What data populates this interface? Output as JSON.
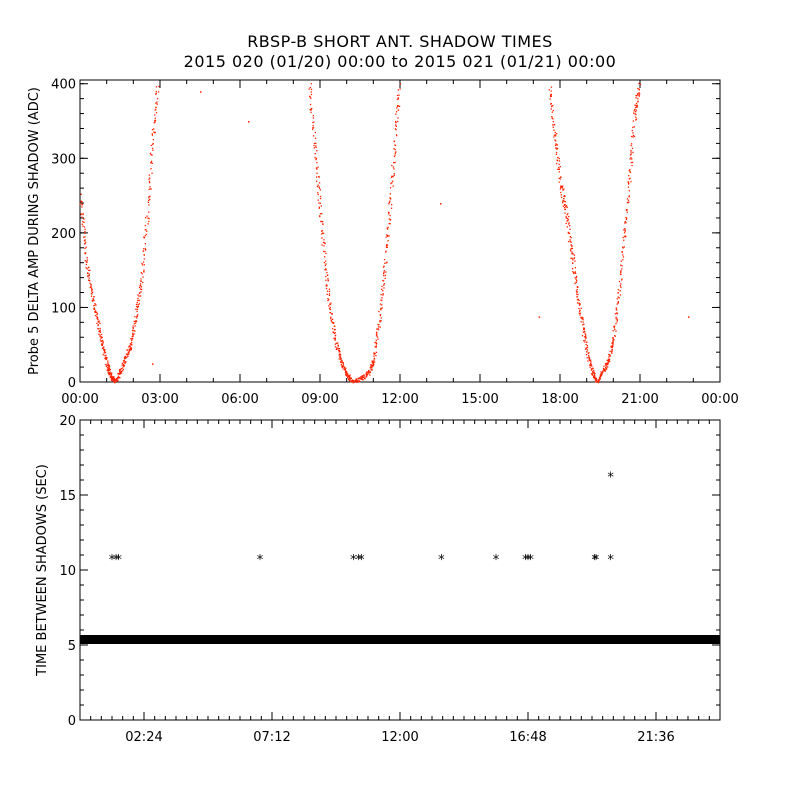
{
  "title_line1": "RBSP-B SHORT ANT. SHADOW TIMES",
  "title_line2": "2015 020 (01/20) 00:00 to 2015 021 (01/21) 00:00",
  "colors": {
    "points_top": "#ff2200",
    "points_bottom": "#000000",
    "axes": "#000000"
  },
  "chart_data": [
    {
      "type": "scatter",
      "ylabel": "Probe 5 DELTA AMP DURING SHADOW (ADC)",
      "xlim_hours": [
        0,
        24
      ],
      "ylim": [
        0,
        405
      ],
      "xtick_labels": [
        "00:00",
        "03:00",
        "06:00",
        "09:00",
        "12:00",
        "15:00",
        "18:00",
        "21:00",
        "00:00"
      ],
      "xtick_hours": [
        0,
        3,
        6,
        9,
        12,
        15,
        18,
        21,
        24
      ],
      "yticks": [
        0,
        100,
        200,
        300,
        400
      ],
      "series": [
        {
          "curves": [
            {
              "x": [
                0.0,
                0.2,
                0.4,
                0.6,
                0.8,
                1.0,
                1.1,
                1.2,
                1.3
              ],
              "y": [
                250,
                170,
                125,
                90,
                55,
                25,
                12,
                5,
                0
              ]
            },
            {
              "x": [
                1.3,
                1.5,
                1.7,
                1.9,
                2.1,
                2.3,
                2.5,
                2.7,
                2.9
              ],
              "y": [
                0,
                15,
                35,
                50,
                90,
                140,
                220,
                320,
                400
              ]
            },
            {
              "x": [
                8.6,
                8.8,
                9.0,
                9.2,
                9.4,
                9.6,
                9.8,
                10.0,
                10.2
              ],
              "y": [
                400,
                310,
                230,
                150,
                90,
                50,
                25,
                10,
                0
              ]
            },
            {
              "x": [
                10.2,
                10.5,
                10.8,
                11.0,
                11.2,
                11.4,
                11.6,
                11.8,
                11.95
              ],
              "y": [
                0,
                5,
                12,
                30,
                80,
                150,
                230,
                320,
                400
              ]
            },
            {
              "x": [
                17.6,
                17.8,
                18.0,
                18.2,
                18.4,
                18.6,
                18.8,
                19.0,
                19.2,
                19.35
              ],
              "y": [
                400,
                330,
                270,
                230,
                180,
                130,
                80,
                40,
                15,
                0
              ]
            },
            {
              "x": [
                19.35,
                19.6,
                19.8,
                20.0,
                20.2,
                20.4,
                20.6,
                20.8,
                20.95
              ],
              "y": [
                0,
                15,
                30,
                60,
                120,
                200,
                280,
                360,
                400
              ]
            }
          ],
          "outliers": {
            "x": [
              4.5,
              6.3,
              13.5,
              17.2,
              22.8,
              2.7
            ],
            "y": [
              390,
              350,
              240,
              88,
              88,
              25
            ]
          }
        }
      ]
    },
    {
      "type": "scatter",
      "ylabel": "TIME BETWEEN SHADOWS (SEC)",
      "xlim_hours": [
        0,
        24
      ],
      "ylim": [
        0,
        20
      ],
      "xtick_labels": [
        "02:24",
        "07:12",
        "12:00",
        "16:48",
        "21:36"
      ],
      "xtick_hours": [
        2.4,
        7.2,
        12,
        16.8,
        21.6
      ],
      "yticks": [
        0,
        5,
        10,
        15,
        20
      ],
      "baseline": {
        "value": 5.4,
        "x_start": 0.0,
        "x_end": 24.0
      },
      "series": [
        {
          "marker": "*",
          "x": [
            1.2,
            1.35,
            1.45,
            6.75,
            10.25,
            10.45,
            10.55,
            13.55,
            15.6,
            16.7,
            16.8,
            16.9,
            19.3,
            19.35,
            19.9,
            19.9
          ],
          "y": [
            10.8,
            10.8,
            10.8,
            10.8,
            10.8,
            10.8,
            10.8,
            10.8,
            10.8,
            10.8,
            10.8,
            10.8,
            10.8,
            10.8,
            10.8,
            16.3
          ]
        }
      ]
    }
  ]
}
